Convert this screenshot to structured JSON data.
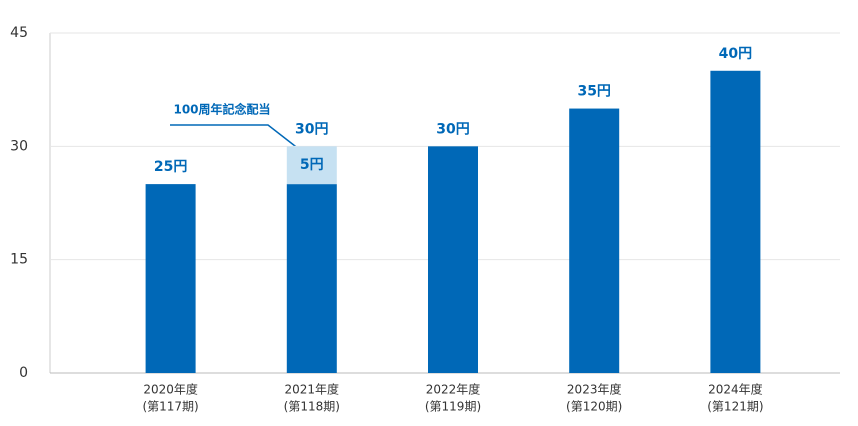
{
  "chart_data": {
    "type": "stacked_bar",
    "categories": [
      [
        "2020年度",
        "(第117期)"
      ],
      [
        "2021年度",
        "(第118期)"
      ],
      [
        "2022年度",
        "(第119期)"
      ],
      [
        "2023年度",
        "(第120期)"
      ],
      [
        "2024年度",
        "(第121期)"
      ]
    ],
    "series": [
      {
        "color": "#0068b7",
        "values": [
          25,
          25,
          30,
          35,
          40
        ]
      },
      {
        "name": "100周年記念配当",
        "color": "#c6e1f2",
        "values": [
          null,
          5,
          null,
          null,
          null
        ],
        "value_labels": [
          null,
          "5円",
          null,
          null,
          null
        ]
      }
    ],
    "totals": [
      25,
      30,
      30,
      35,
      40
    ],
    "total_labels": [
      "25円",
      "30円",
      "30円",
      "35円",
      "40円"
    ],
    "ylim": [
      0,
      45
    ],
    "yticks": [
      0,
      15,
      30,
      45
    ],
    "grid": true
  }
}
